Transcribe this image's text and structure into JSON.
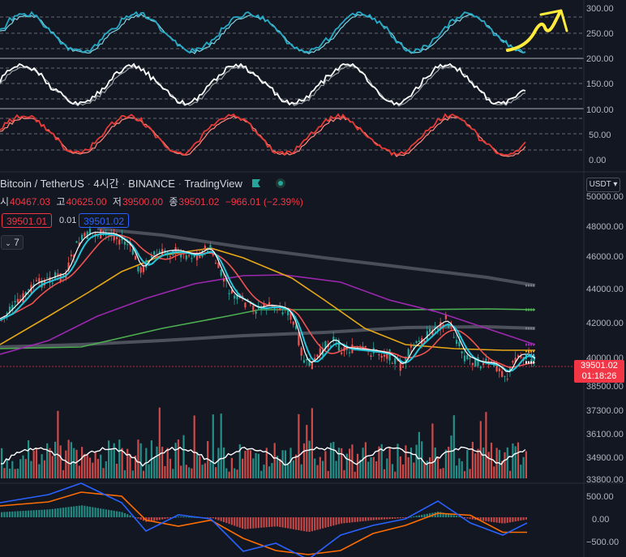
{
  "header": {
    "pair": "Bitcoin / TetherUS",
    "interval": "4시간",
    "exchange": "BINANCE",
    "source": "TradingView"
  },
  "ohlc": {
    "open_label": "시",
    "open": "40467.03",
    "high_label": "고",
    "high": "40625.00",
    "low_label": "저",
    "low": "39500.00",
    "close_label": "종",
    "close": "39501.02",
    "change": "−966.01 (−2.39%)"
  },
  "trade": {
    "bid": "39501.01",
    "spread": "0.01",
    "ask": "39501.02"
  },
  "indicators_toggle": {
    "count": "7"
  },
  "currency_button": "USDT",
  "last_price": {
    "value": "39501.02",
    "countdown": "01:18:26"
  },
  "scales": {
    "rsi1": [
      "300.00",
      "250.00",
      "200.00"
    ],
    "rsi2": [
      "150.00",
      "100.00"
    ],
    "rsi3": [
      "50.00",
      "0.00"
    ],
    "price": [
      "50000.00",
      "48000.00",
      "46000.00",
      "44000.00",
      "42000.00",
      "40000.00",
      "38500.00"
    ],
    "volume": [
      "37300.00",
      "36100.00",
      "34900.00",
      "33800.00"
    ],
    "macd": [
      "500.00",
      "0.00",
      "−500.00"
    ]
  },
  "colors": {
    "background": "#131722",
    "up": "#26a69a",
    "down": "#ef5350",
    "accent_yellow": "#ffeb3b"
  }
}
